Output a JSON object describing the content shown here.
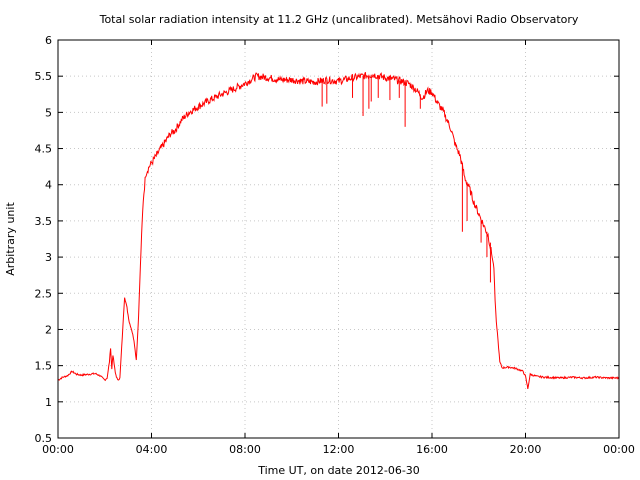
{
  "chart_data": {
    "type": "line",
    "title": "Total solar radiation intensity at 11.2 GHz (uncalibrated). Metsähovi Radio Observatory",
    "xlabel": "Time UT, on date 2012-06-30",
    "ylabel": "Arbitrary unit",
    "x_unit": "hours UT",
    "xlim": [
      0,
      24
    ],
    "ylim": [
      0.5,
      6
    ],
    "grid": true,
    "line_color": "#ff0000",
    "x_ticks": [
      {
        "value": 0,
        "label": "00:00"
      },
      {
        "value": 4,
        "label": "04:00"
      },
      {
        "value": 8,
        "label": "08:00"
      },
      {
        "value": 12,
        "label": "12:00"
      },
      {
        "value": 16,
        "label": "16:00"
      },
      {
        "value": 20,
        "label": "20:00"
      },
      {
        "value": 24,
        "label": "00:00"
      }
    ],
    "y_ticks": [
      {
        "value": 0.5,
        "label": "0.5"
      },
      {
        "value": 1,
        "label": "1"
      },
      {
        "value": 1.5,
        "label": "1.5"
      },
      {
        "value": 2,
        "label": "2"
      },
      {
        "value": 2.5,
        "label": "2.5"
      },
      {
        "value": 3,
        "label": "3"
      },
      {
        "value": 3.5,
        "label": "3.5"
      },
      {
        "value": 4,
        "label": "4"
      },
      {
        "value": 4.5,
        "label": "4.5"
      },
      {
        "value": 5,
        "label": "5"
      },
      {
        "value": 5.5,
        "label": "5.5"
      },
      {
        "value": 6,
        "label": "6"
      }
    ],
    "series": [
      {
        "points": [
          [
            0.0,
            1.3
          ],
          [
            0.2,
            1.34
          ],
          [
            0.4,
            1.36
          ],
          [
            0.6,
            1.42
          ],
          [
            0.8,
            1.38
          ],
          [
            1.0,
            1.37
          ],
          [
            1.3,
            1.38
          ],
          [
            1.6,
            1.39
          ],
          [
            1.8,
            1.36
          ],
          [
            2.0,
            1.3
          ],
          [
            2.1,
            1.33
          ],
          [
            2.2,
            1.55
          ],
          [
            2.25,
            1.75
          ],
          [
            2.3,
            1.45
          ],
          [
            2.35,
            1.65
          ],
          [
            2.45,
            1.4
          ],
          [
            2.55,
            1.3
          ],
          [
            2.65,
            1.33
          ],
          [
            2.75,
            1.9
          ],
          [
            2.85,
            2.45
          ],
          [
            2.95,
            2.3
          ],
          [
            3.05,
            2.1
          ],
          [
            3.15,
            2.0
          ],
          [
            3.25,
            1.85
          ],
          [
            3.35,
            1.58
          ],
          [
            3.45,
            2.2
          ],
          [
            3.55,
            3.1
          ],
          [
            3.65,
            3.8
          ],
          [
            3.75,
            4.15
          ],
          [
            3.9,
            4.25
          ],
          [
            4.1,
            4.35
          ],
          [
            4.3,
            4.45
          ],
          [
            4.5,
            4.55
          ],
          [
            4.8,
            4.7
          ],
          [
            5.0,
            4.75
          ],
          [
            5.3,
            4.9
          ],
          [
            5.6,
            5.0
          ],
          [
            6.0,
            5.08
          ],
          [
            6.5,
            5.17
          ],
          [
            7.0,
            5.25
          ],
          [
            7.5,
            5.32
          ],
          [
            8.0,
            5.4
          ],
          [
            8.5,
            5.5
          ],
          [
            9.0,
            5.48
          ],
          [
            9.5,
            5.45
          ],
          [
            10.0,
            5.45
          ],
          [
            10.5,
            5.43
          ],
          [
            11.0,
            5.42
          ],
          [
            11.5,
            5.45
          ],
          [
            12.0,
            5.43
          ],
          [
            12.5,
            5.47
          ],
          [
            13.0,
            5.5
          ],
          [
            13.5,
            5.52
          ],
          [
            14.0,
            5.48
          ],
          [
            14.5,
            5.45
          ],
          [
            15.0,
            5.4
          ],
          [
            15.3,
            5.32
          ],
          [
            15.6,
            5.2
          ],
          [
            15.8,
            5.3
          ],
          [
            16.0,
            5.28
          ],
          [
            16.2,
            5.15
          ],
          [
            16.5,
            5.0
          ],
          [
            16.8,
            4.78
          ],
          [
            17.0,
            4.55
          ],
          [
            17.2,
            4.4
          ],
          [
            17.4,
            4.1
          ],
          [
            17.6,
            3.95
          ],
          [
            17.8,
            3.75
          ],
          [
            18.0,
            3.6
          ],
          [
            18.2,
            3.45
          ],
          [
            18.4,
            3.3
          ],
          [
            18.55,
            3.05
          ],
          [
            18.65,
            2.85
          ],
          [
            18.7,
            2.4
          ],
          [
            18.75,
            2.1
          ],
          [
            18.8,
            1.95
          ],
          [
            18.9,
            1.55
          ],
          [
            19.0,
            1.47
          ],
          [
            19.3,
            1.48
          ],
          [
            19.6,
            1.46
          ],
          [
            19.9,
            1.42
          ],
          [
            20.0,
            1.35
          ],
          [
            20.1,
            1.18
          ],
          [
            20.2,
            1.38
          ],
          [
            20.5,
            1.35
          ],
          [
            20.8,
            1.34
          ],
          [
            21.5,
            1.33
          ],
          [
            22.0,
            1.34
          ],
          [
            22.5,
            1.33
          ],
          [
            23.0,
            1.34
          ],
          [
            23.5,
            1.33
          ],
          [
            24.0,
            1.33
          ]
        ],
        "dips": [
          [
            11.3,
            5.45,
            5.08
          ],
          [
            11.5,
            5.45,
            5.12
          ],
          [
            12.6,
            5.47,
            5.2
          ],
          [
            13.05,
            5.5,
            4.95
          ],
          [
            13.3,
            5.52,
            5.05
          ],
          [
            13.4,
            5.52,
            5.15
          ],
          [
            13.7,
            5.5,
            5.2
          ],
          [
            14.2,
            5.48,
            5.17
          ],
          [
            14.6,
            5.44,
            5.2
          ],
          [
            14.85,
            5.42,
            4.8
          ],
          [
            15.5,
            5.25,
            5.05
          ],
          [
            17.3,
            4.3,
            3.35
          ],
          [
            17.5,
            4.0,
            3.5
          ],
          [
            18.1,
            3.5,
            3.2
          ],
          [
            18.35,
            3.35,
            3.0
          ],
          [
            18.5,
            3.2,
            2.65
          ]
        ]
      }
    ]
  }
}
